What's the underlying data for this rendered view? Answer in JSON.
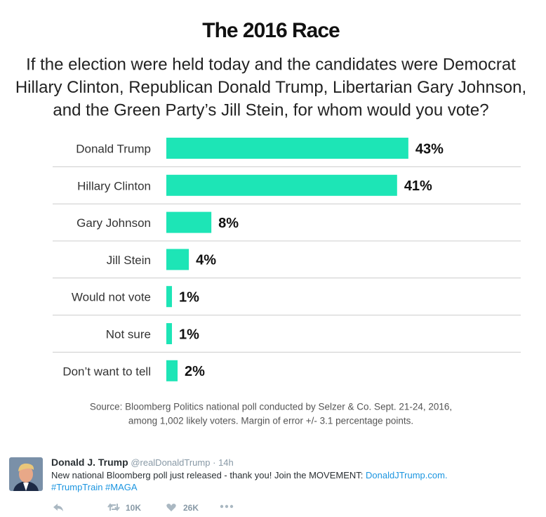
{
  "chart_data": {
    "type": "bar",
    "orientation": "horizontal",
    "title": "The 2016 Race",
    "subtitle": [
      "If the election were held today and the candidates were Democrat",
      "Hillary Clinton, Republican Donald Trump, Libertarian Gary Johnson,",
      "and the Green Party’s Jill Stein, for whom would you vote?"
    ],
    "categories": [
      "Donald Trump",
      "Hillary Clinton",
      "Gary Johnson",
      "Jill Stein",
      "Would not vote",
      "Not sure",
      "Don’t want to tell"
    ],
    "values": [
      43,
      41,
      8,
      4,
      1,
      1,
      2
    ],
    "value_labels": [
      "43%",
      "41%",
      "8%",
      "4%",
      "1%",
      "1%",
      "2%"
    ],
    "color": "#1de5b6",
    "source": [
      "Source: Bloomberg Politics national poll conducted by Selzer & Co. Sept. 21-24, 2016,",
      "among 1,002 likely voters. Margin of error +/- 3.1 percentage points."
    ]
  },
  "tweet": {
    "name": "Donald J. Trump",
    "handle": "@realDonaldTrump",
    "time": "14h",
    "text": "New national Bloomberg poll just released - thank you! Join the MOVEMENT:",
    "link": "DonaldJTrump.com.",
    "hashtags": "#TrumpTrain #MAGA",
    "retweets": "10K",
    "likes": "26K"
  }
}
